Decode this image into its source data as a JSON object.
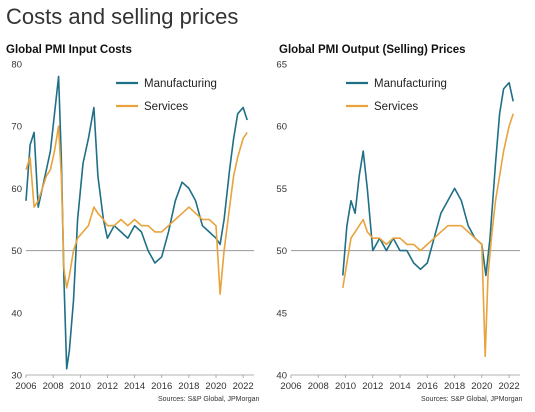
{
  "header": {
    "title": "Costs and selling prices"
  },
  "colors": {
    "manufacturing": "#1f6f86",
    "services": "#e8a33d",
    "axis": "#9a9a9a"
  },
  "chart_data": [
    {
      "type": "line",
      "title": "Global PMI Input Costs",
      "source": "Sources: S&P Global, JPMorgan",
      "ylim": [
        30,
        80
      ],
      "yticks": [
        "30",
        "40",
        "50",
        "60",
        "70",
        "80"
      ],
      "xlim": [
        2006,
        2022.8
      ],
      "xticks": [
        "2006",
        "2008",
        "2010",
        "2012",
        "2014",
        "2016",
        "2018",
        "2020",
        "2022"
      ],
      "legend": "top-right",
      "grid": false,
      "series": [
        {
          "name": "Manufacturing",
          "x": [
            2006.0,
            2006.3,
            2006.6,
            2006.9,
            2007.2,
            2007.5,
            2007.8,
            2008.1,
            2008.4,
            2008.6,
            2008.8,
            2009.0,
            2009.2,
            2009.5,
            2009.8,
            2010.2,
            2010.6,
            2011.0,
            2011.3,
            2011.7,
            2012.0,
            2012.5,
            2013.0,
            2013.5,
            2014.0,
            2014.5,
            2015.0,
            2015.5,
            2016.0,
            2016.5,
            2017.0,
            2017.5,
            2018.0,
            2018.5,
            2019.0,
            2019.5,
            2020.0,
            2020.3,
            2020.6,
            2021.0,
            2021.3,
            2021.6,
            2022.0,
            2022.3
          ],
          "values": [
            58,
            67,
            69,
            57,
            60,
            63,
            66,
            72,
            78,
            65,
            45,
            31,
            34,
            42,
            55,
            64,
            68,
            73,
            62,
            55,
            52,
            54,
            53,
            52,
            54,
            53,
            50,
            48,
            49,
            53,
            58,
            61,
            60,
            58,
            54,
            53,
            52,
            51,
            55,
            63,
            68,
            72,
            73,
            71
          ]
        },
        {
          "name": "Services",
          "x": [
            2006.0,
            2006.3,
            2006.6,
            2006.9,
            2007.2,
            2007.5,
            2007.8,
            2008.1,
            2008.4,
            2008.6,
            2008.8,
            2009.0,
            2009.2,
            2009.5,
            2009.8,
            2010.2,
            2010.6,
            2011.0,
            2011.3,
            2011.7,
            2012.0,
            2012.5,
            2013.0,
            2013.5,
            2014.0,
            2014.5,
            2015.0,
            2015.5,
            2016.0,
            2016.5,
            2017.0,
            2017.5,
            2018.0,
            2018.5,
            2019.0,
            2019.5,
            2020.0,
            2020.3,
            2020.6,
            2021.0,
            2021.3,
            2021.6,
            2022.0,
            2022.3
          ],
          "values": [
            63,
            65,
            57,
            58,
            60,
            62,
            63,
            66,
            70,
            62,
            47,
            44,
            46,
            50,
            52,
            53,
            54,
            57,
            56,
            55,
            54,
            54,
            55,
            54,
            55,
            54,
            54,
            53,
            53,
            54,
            55,
            56,
            57,
            56,
            55,
            55,
            54,
            43,
            50,
            57,
            62,
            65,
            68,
            69
          ]
        }
      ]
    },
    {
      "type": "line",
      "title": "Global PMI Output (Selling) Prices",
      "source": "Sources: S&P Global, JPMorgan",
      "ylim": [
        40,
        65
      ],
      "yticks": [
        "40",
        "45",
        "50",
        "55",
        "60",
        "65"
      ],
      "xlim": [
        2006,
        2022.8
      ],
      "xticks": [
        "2006",
        "2008",
        "2010",
        "2012",
        "2014",
        "2016",
        "2018",
        "2020",
        "2022"
      ],
      "legend": "top-right",
      "grid": false,
      "series": [
        {
          "name": "Manufacturing",
          "x": [
            2009.8,
            2010.1,
            2010.4,
            2010.7,
            2011.0,
            2011.3,
            2011.6,
            2012.0,
            2012.5,
            2013.0,
            2013.5,
            2014.0,
            2014.5,
            2015.0,
            2015.5,
            2016.0,
            2016.5,
            2017.0,
            2017.5,
            2018.0,
            2018.5,
            2019.0,
            2019.5,
            2020.0,
            2020.3,
            2020.6,
            2021.0,
            2021.3,
            2021.6,
            2022.0,
            2022.3
          ],
          "values": [
            48,
            52,
            54,
            53,
            56,
            58,
            55,
            50,
            51,
            50,
            51,
            50,
            50,
            49,
            48.5,
            49,
            51,
            53,
            54,
            55,
            54,
            52,
            51,
            50.5,
            48,
            51,
            57,
            61,
            63,
            63.5,
            62
          ]
        },
        {
          "name": "Services",
          "x": [
            2009.8,
            2010.1,
            2010.4,
            2010.7,
            2011.0,
            2011.3,
            2011.6,
            2012.0,
            2012.5,
            2013.0,
            2013.5,
            2014.0,
            2014.5,
            2015.0,
            2015.5,
            2016.0,
            2016.5,
            2017.0,
            2017.5,
            2018.0,
            2018.5,
            2019.0,
            2019.5,
            2020.0,
            2020.25,
            2020.45,
            2020.7,
            2021.0,
            2021.3,
            2021.6,
            2022.0,
            2022.3
          ],
          "values": [
            47,
            49,
            51,
            51.5,
            52,
            52.5,
            51.5,
            51,
            51,
            50.5,
            51,
            51,
            50.5,
            50.5,
            50,
            50.5,
            51,
            51.5,
            52,
            52,
            52,
            51.5,
            51,
            50.5,
            41.5,
            48,
            51,
            54,
            56,
            58,
            60,
            61
          ]
        }
      ]
    }
  ]
}
